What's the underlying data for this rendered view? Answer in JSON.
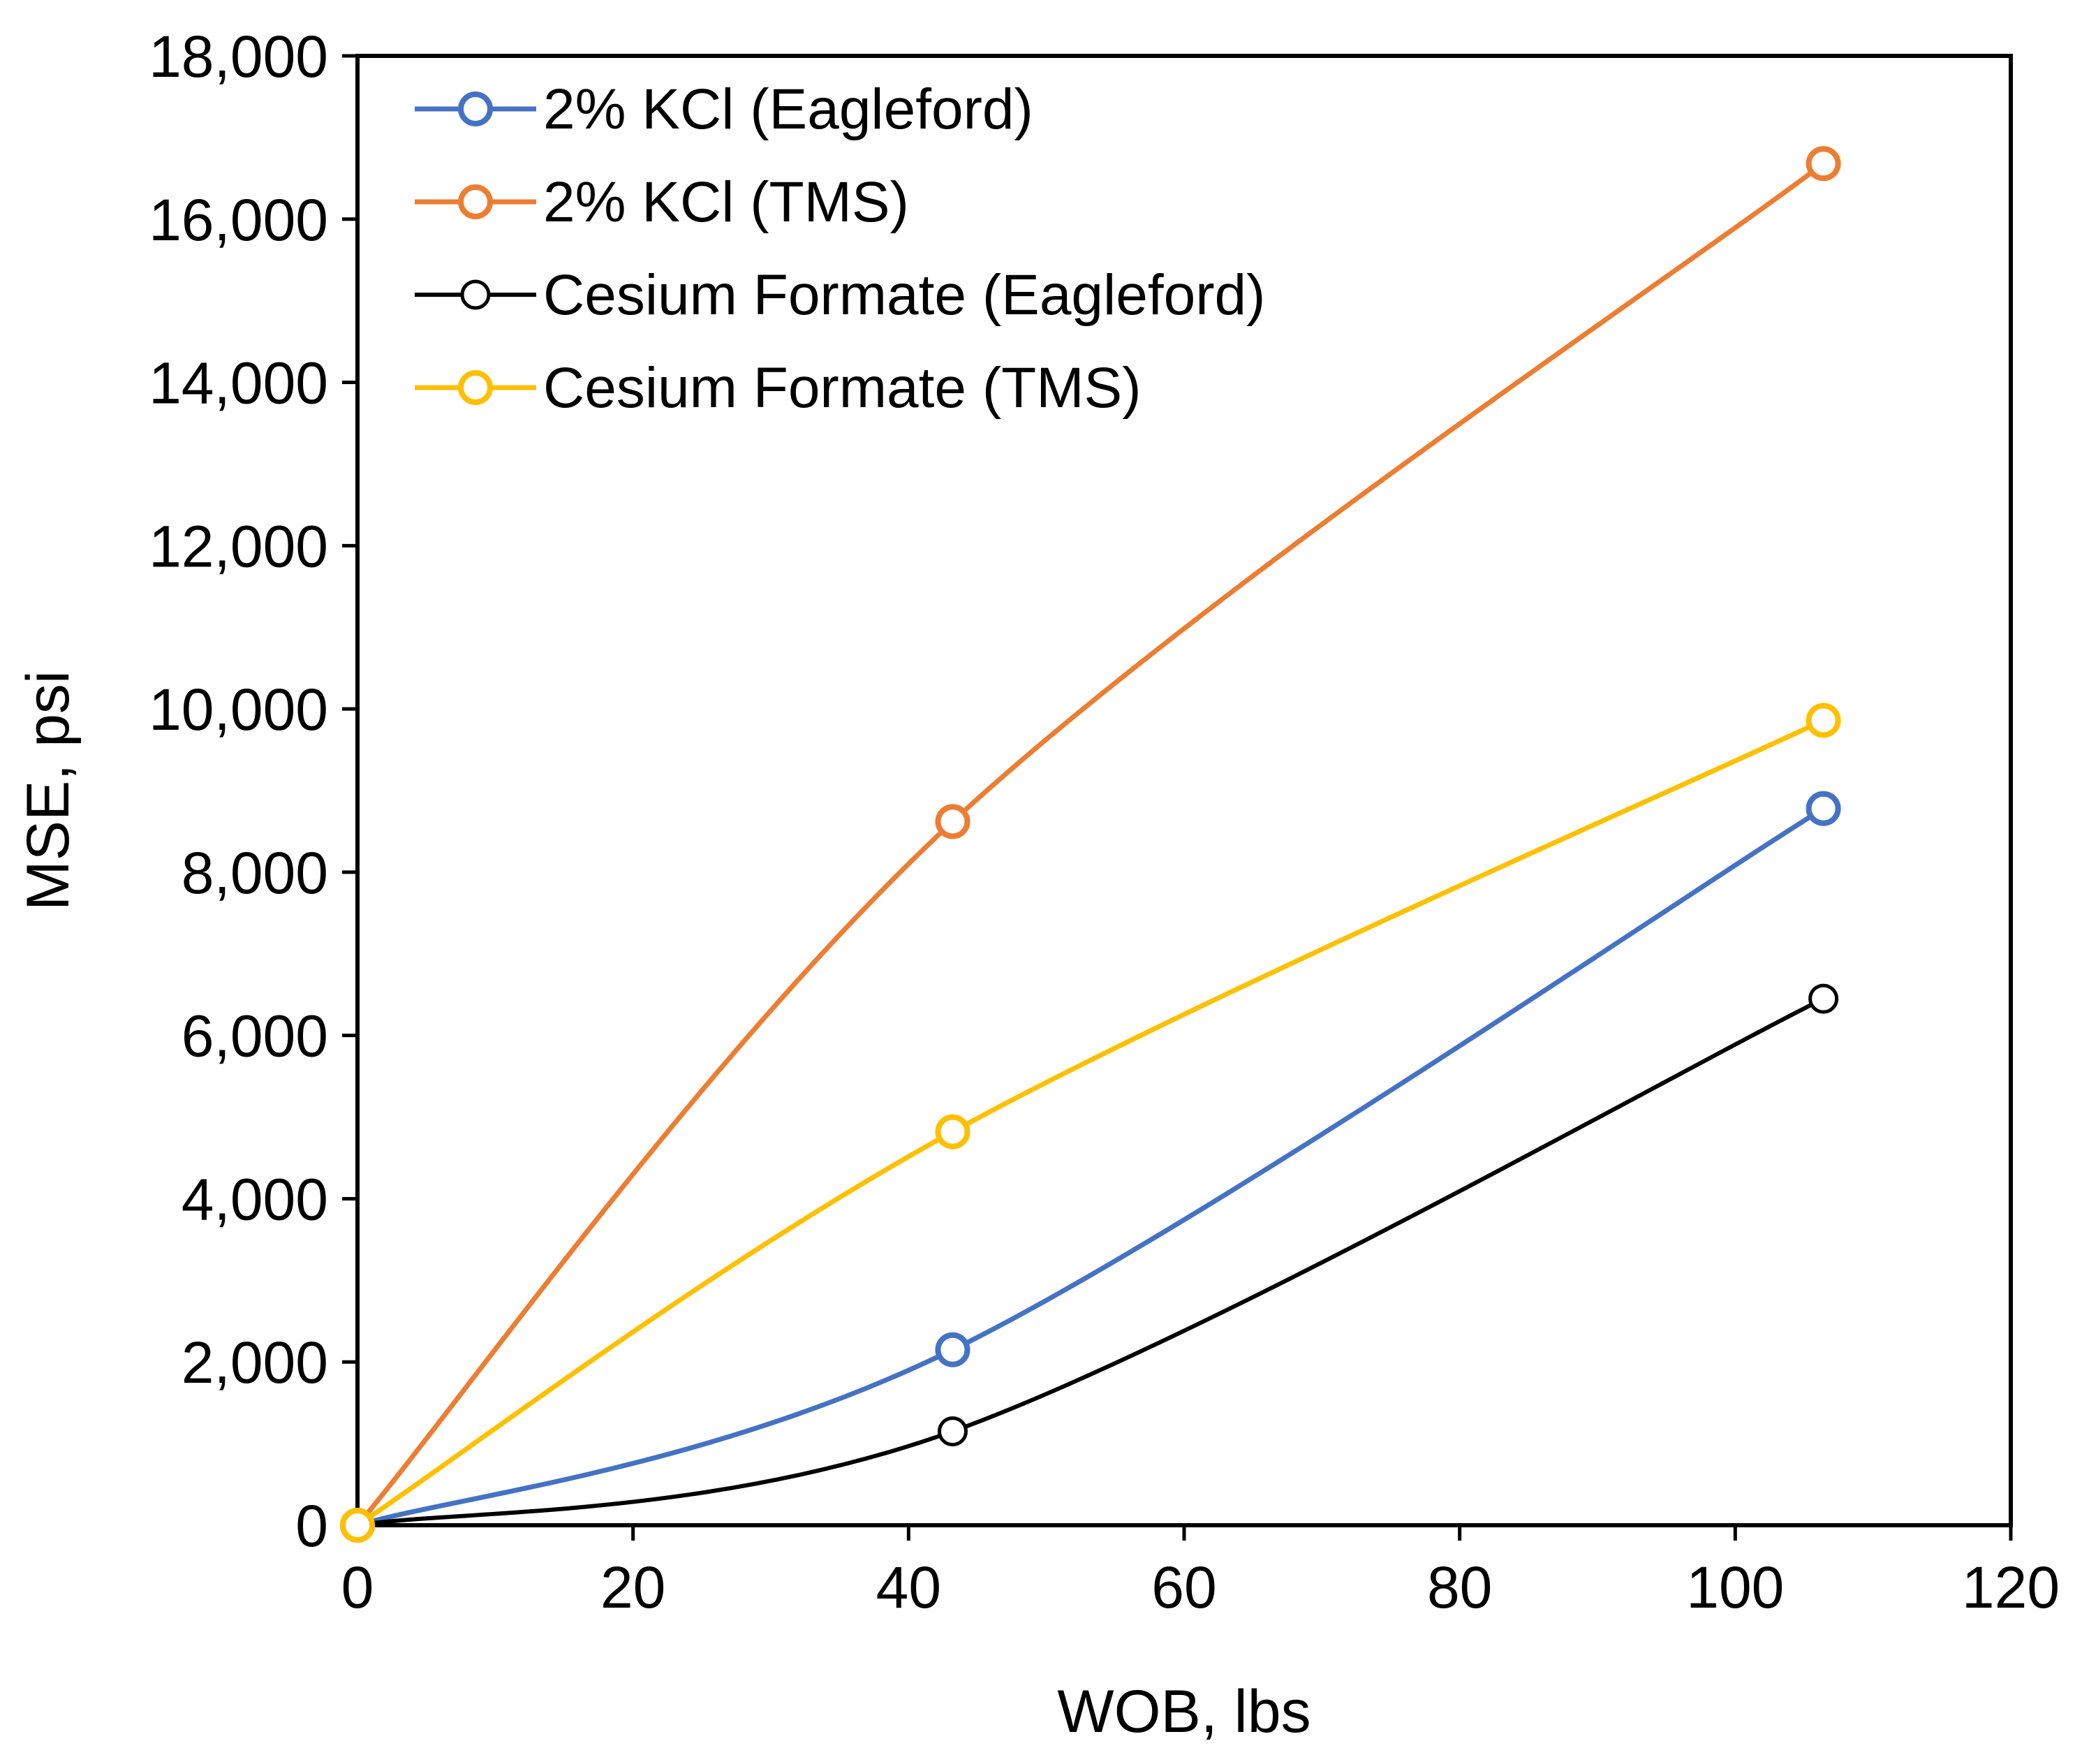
{
  "chart_data": {
    "type": "line",
    "title": "",
    "xlabel": "WOB, lbs",
    "ylabel": "MSE, psi",
    "xlim": [
      0,
      120
    ],
    "ylim": [
      0,
      18000
    ],
    "xticks": [
      0,
      20,
      40,
      60,
      80,
      100,
      120
    ],
    "yticks": [
      0,
      2000,
      4000,
      6000,
      8000,
      10000,
      12000,
      14000,
      16000,
      18000
    ],
    "xtick_labels": [
      "0",
      "20",
      "40",
      "60",
      "80",
      "100",
      "120"
    ],
    "ytick_labels": [
      "0",
      "2,000",
      "4,000",
      "6,000",
      "8,000",
      "10,000",
      "12,000",
      "14,000",
      "16,000",
      "18,000"
    ],
    "grid": false,
    "smooth": true,
    "legend_position": "top-left",
    "series": [
      {
        "name": "2% KCl (Eagleford)",
        "color": "#4472C4",
        "x": [
          0,
          43.2,
          106.4
        ],
        "y": [
          0,
          2150,
          8780
        ]
      },
      {
        "name": "2% KCl (TMS)",
        "color": "#ED7D31",
        "x": [
          0,
          43.2,
          106.4
        ],
        "y": [
          0,
          8620,
          16680
        ]
      },
      {
        "name": "Cesium Formate (Eagleford)",
        "color": "#000000",
        "x": [
          0,
          43.2,
          106.4
        ],
        "y": [
          0,
          1150,
          6450
        ]
      },
      {
        "name": "Cesium Formate (TMS)",
        "color": "#FFC000",
        "x": [
          0,
          43.2,
          106.4
        ],
        "y": [
          0,
          4820,
          9860
        ]
      }
    ]
  }
}
